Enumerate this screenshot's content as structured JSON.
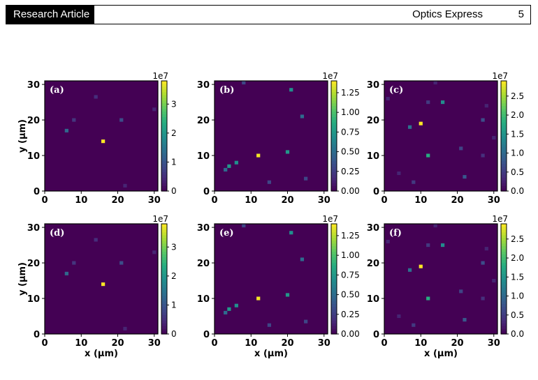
{
  "header": {
    "section_label": "Research Article",
    "journal": "Optics Express",
    "page_number": "5"
  },
  "figure": {
    "xlabel": "x (μm)",
    "ylabel": "y (μm)",
    "axis_ticks": [
      "0",
      "10",
      "20",
      "30"
    ],
    "colorbar_exponent": "1e7"
  },
  "chart_data": [
    {
      "type": "heatmap",
      "panel": "(a)",
      "xlim": [
        0,
        31
      ],
      "ylim": [
        0,
        31
      ],
      "clim": [
        0,
        3.8
      ],
      "colorbar_ticks": [
        "0",
        "1",
        "2",
        "3"
      ],
      "points": [
        {
          "x": 14,
          "y": 26.5,
          "v": 0.5
        },
        {
          "x": 30,
          "y": 23,
          "v": 0.4
        },
        {
          "x": 8,
          "y": 20,
          "v": 0.6
        },
        {
          "x": 21,
          "y": 20,
          "v": 0.9
        },
        {
          "x": 6,
          "y": 17,
          "v": 1.3
        },
        {
          "x": 16,
          "y": 14,
          "v": 3.8
        },
        {
          "x": 22,
          "y": 1.5,
          "v": 0.4
        }
      ]
    },
    {
      "type": "heatmap",
      "panel": "(b)",
      "xlim": [
        0,
        31
      ],
      "ylim": [
        0,
        31
      ],
      "clim": [
        0,
        1.4
      ],
      "colorbar_ticks": [
        "0.00",
        "0.25",
        "0.50",
        "0.75",
        "1.00",
        "1.25"
      ],
      "points": [
        {
          "x": 8,
          "y": 30.5,
          "v": 0.3
        },
        {
          "x": 21,
          "y": 28.5,
          "v": 0.7
        },
        {
          "x": 24,
          "y": 21,
          "v": 0.5
        },
        {
          "x": 20,
          "y": 11,
          "v": 0.75
        },
        {
          "x": 12,
          "y": 10,
          "v": 1.38
        },
        {
          "x": 6,
          "y": 8,
          "v": 0.7
        },
        {
          "x": 4,
          "y": 7,
          "v": 0.75
        },
        {
          "x": 3,
          "y": 6,
          "v": 0.5
        },
        {
          "x": 25,
          "y": 3.5,
          "v": 0.3
        },
        {
          "x": 15,
          "y": 2.5,
          "v": 0.3
        }
      ]
    },
    {
      "type": "heatmap",
      "panel": "(c)",
      "xlim": [
        0,
        31
      ],
      "ylim": [
        0,
        31
      ],
      "clim": [
        0,
        2.9
      ],
      "colorbar_ticks": [
        "0.0",
        "0.5",
        "1.0",
        "1.5",
        "2.0",
        "2.5"
      ],
      "points": [
        {
          "x": 14,
          "y": 30.5,
          "v": 0.3
        },
        {
          "x": 1,
          "y": 26,
          "v": 0.3
        },
        {
          "x": 12,
          "y": 25,
          "v": 0.5
        },
        {
          "x": 16,
          "y": 25,
          "v": 1.4
        },
        {
          "x": 28,
          "y": 24,
          "v": 0.3
        },
        {
          "x": 27,
          "y": 20,
          "v": 0.7
        },
        {
          "x": 10,
          "y": 19,
          "v": 2.9
        },
        {
          "x": 7,
          "y": 18,
          "v": 1.1
        },
        {
          "x": 30,
          "y": 15,
          "v": 0.3
        },
        {
          "x": 21,
          "y": 12,
          "v": 0.6
        },
        {
          "x": 12,
          "y": 10,
          "v": 1.8
        },
        {
          "x": 27,
          "y": 10,
          "v": 0.4
        },
        {
          "x": 4,
          "y": 5,
          "v": 0.3
        },
        {
          "x": 22,
          "y": 4,
          "v": 0.8
        },
        {
          "x": 8,
          "y": 2.5,
          "v": 0.5
        }
      ]
    },
    {
      "type": "heatmap",
      "panel": "(d)",
      "xlim": [
        0,
        31
      ],
      "ylim": [
        0,
        31
      ],
      "clim": [
        0,
        3.8
      ],
      "colorbar_ticks": [
        "0",
        "1",
        "2",
        "3"
      ],
      "points": [
        {
          "x": 14,
          "y": 26.5,
          "v": 0.5
        },
        {
          "x": 30,
          "y": 23,
          "v": 0.4
        },
        {
          "x": 8,
          "y": 20,
          "v": 0.6
        },
        {
          "x": 21,
          "y": 20,
          "v": 0.9
        },
        {
          "x": 6,
          "y": 17,
          "v": 1.3
        },
        {
          "x": 16,
          "y": 14,
          "v": 3.8
        },
        {
          "x": 22,
          "y": 1.5,
          "v": 0.4
        }
      ]
    },
    {
      "type": "heatmap",
      "panel": "(e)",
      "xlim": [
        0,
        31
      ],
      "ylim": [
        0,
        31
      ],
      "clim": [
        0,
        1.4
      ],
      "colorbar_ticks": [
        "0.00",
        "0.25",
        "0.50",
        "0.75",
        "1.00",
        "1.25"
      ],
      "points": [
        {
          "x": 8,
          "y": 30.5,
          "v": 0.3
        },
        {
          "x": 21,
          "y": 28.5,
          "v": 0.7
        },
        {
          "x": 24,
          "y": 21,
          "v": 0.5
        },
        {
          "x": 20,
          "y": 11,
          "v": 0.75
        },
        {
          "x": 12,
          "y": 10,
          "v": 1.38
        },
        {
          "x": 6,
          "y": 8,
          "v": 0.7
        },
        {
          "x": 4,
          "y": 7,
          "v": 0.75
        },
        {
          "x": 3,
          "y": 6,
          "v": 0.5
        },
        {
          "x": 25,
          "y": 3.5,
          "v": 0.3
        },
        {
          "x": 15,
          "y": 2.5,
          "v": 0.3
        }
      ]
    },
    {
      "type": "heatmap",
      "panel": "(f)",
      "xlim": [
        0,
        31
      ],
      "ylim": [
        0,
        31
      ],
      "clim": [
        0,
        2.9
      ],
      "colorbar_ticks": [
        "0.0",
        "0.5",
        "1.0",
        "1.5",
        "2.0",
        "2.5"
      ],
      "points": [
        {
          "x": 14,
          "y": 30.5,
          "v": 0.3
        },
        {
          "x": 1,
          "y": 26,
          "v": 0.3
        },
        {
          "x": 12,
          "y": 25,
          "v": 0.5
        },
        {
          "x": 16,
          "y": 25,
          "v": 1.4
        },
        {
          "x": 28,
          "y": 24,
          "v": 0.3
        },
        {
          "x": 27,
          "y": 20,
          "v": 0.7
        },
        {
          "x": 10,
          "y": 19,
          "v": 2.9
        },
        {
          "x": 7,
          "y": 18,
          "v": 1.1
        },
        {
          "x": 30,
          "y": 15,
          "v": 0.3
        },
        {
          "x": 21,
          "y": 12,
          "v": 0.6
        },
        {
          "x": 12,
          "y": 10,
          "v": 1.8
        },
        {
          "x": 27,
          "y": 10,
          "v": 0.4
        },
        {
          "x": 4,
          "y": 5,
          "v": 0.3
        },
        {
          "x": 22,
          "y": 4,
          "v": 0.8
        },
        {
          "x": 8,
          "y": 2.5,
          "v": 0.5
        }
      ]
    }
  ]
}
